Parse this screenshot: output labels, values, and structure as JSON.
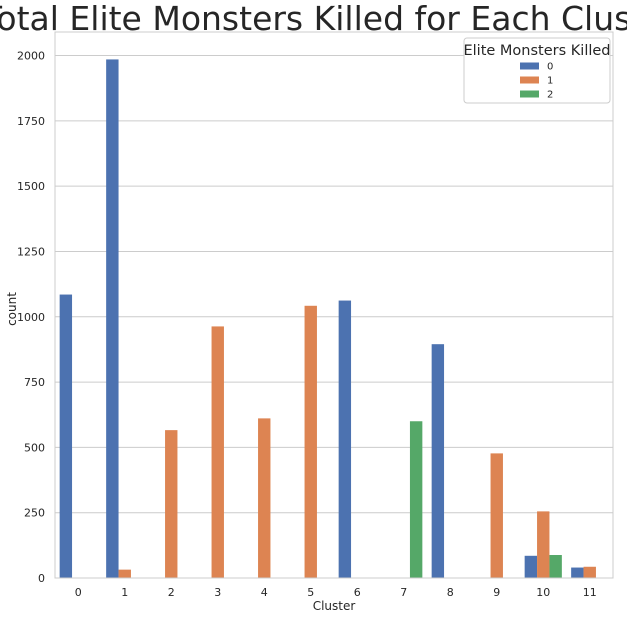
{
  "chart_data": {
    "type": "bar",
    "title": "Total Elite Monsters Killed for Each Cluster",
    "xlabel": "Cluster",
    "ylabel": "count",
    "categories": [
      "0",
      "1",
      "2",
      "3",
      "4",
      "5",
      "6",
      "7",
      "8",
      "9",
      "10",
      "11"
    ],
    "series": [
      {
        "name": "0",
        "color": "#4c72b0",
        "values": [
          1085,
          1985,
          0,
          0,
          0,
          0,
          1062,
          0,
          895,
          0,
          85,
          40
        ]
      },
      {
        "name": "1",
        "color": "#dd8452",
        "values": [
          0,
          32,
          566,
          963,
          611,
          1042,
          0,
          0,
          0,
          477,
          255,
          43
        ]
      },
      {
        "name": "2",
        "color": "#55a868",
        "values": [
          0,
          0,
          0,
          0,
          0,
          0,
          0,
          600,
          0,
          0,
          88,
          0
        ]
      }
    ],
    "yticks": [
      0,
      250,
      500,
      750,
      1000,
      1250,
      1500,
      1750,
      2000
    ],
    "ylim": [
      0,
      2090
    ],
    "grid": true,
    "legend": {
      "title": "Elite Monsters Killed",
      "position": "top-right"
    }
  }
}
